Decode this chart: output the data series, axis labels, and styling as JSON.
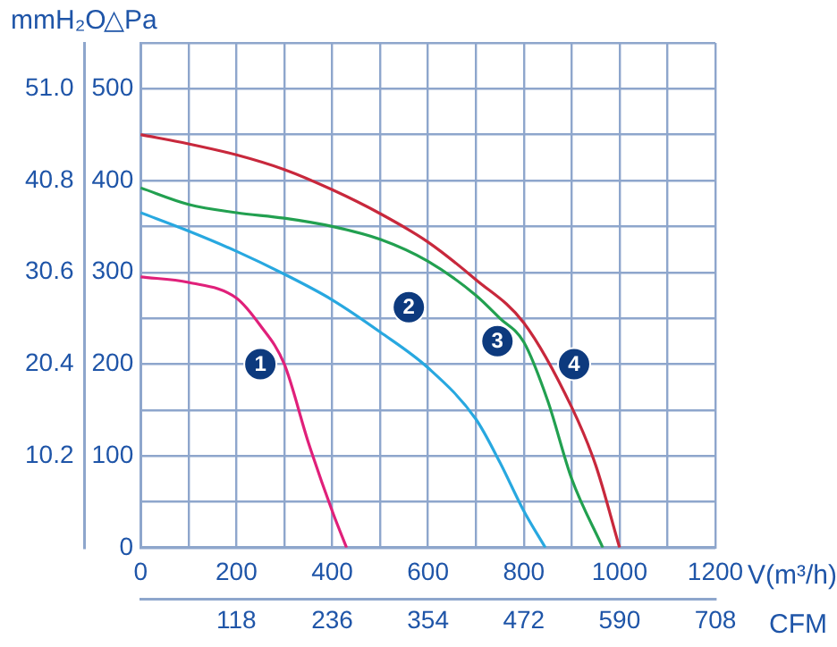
{
  "chart_data": {
    "type": "line",
    "xlabel": "V(m³/h)",
    "x2label": "CFM",
    "ylabel": "△Pa",
    "y2label": "mmH₂O",
    "marker": "none",
    "grid": true,
    "xlim": [
      0,
      1200
    ],
    "xticks": [
      0,
      {
        "value": 100,
        "label": null
      },
      200,
      {
        "value": 300,
        "label": null
      },
      400,
      {
        "value": 500,
        "label": null
      },
      600,
      {
        "value": 700,
        "label": null
      },
      800,
      {
        "value": 900,
        "label": null
      },
      1000,
      {
        "value": 1100,
        "label": null
      },
      1200
    ],
    "x2lim": [
      0,
      708
    ],
    "x2ticks": [
      118,
      236,
      354,
      472,
      590,
      708
    ],
    "ylim": [
      0,
      550
    ],
    "yticks": [
      0,
      {
        "value": 50,
        "label": null
      },
      100,
      {
        "value": 150,
        "label": null
      },
      200,
      {
        "value": 250,
        "label": null
      },
      300,
      {
        "value": 350,
        "label": null
      },
      400,
      {
        "value": 450,
        "label": null
      },
      500,
      {
        "value": 550,
        "label": null
      }
    ],
    "y2lim": [
      0,
      56.1
    ],
    "y2ticks": [
      10.2,
      20.4,
      30.6,
      40.8,
      {
        "value": 51,
        "label": "51.0"
      }
    ],
    "series": [
      {
        "color": "#e0207a",
        "x": [
          0,
          100,
          200,
          250,
          300,
          350,
          400,
          430
        ],
        "values": [
          295,
          289,
          272,
          242,
          200,
          115,
          40,
          0
        ]
      },
      {
        "color": "#28a8e0",
        "x": [
          0,
          100,
          200,
          300,
          400,
          500,
          600,
          700,
          750,
          800,
          845
        ],
        "values": [
          365,
          345,
          323,
          298,
          270,
          235,
          196,
          140,
          93,
          40,
          0
        ]
      },
      {
        "color": "#22a050",
        "x": [
          0,
          100,
          200,
          300,
          400,
          500,
          600,
          700,
          750,
          800,
          850,
          900,
          965
        ],
        "values": [
          392,
          374,
          365,
          359,
          350,
          336,
          312,
          275,
          250,
          224,
          160,
          75,
          0
        ]
      },
      {
        "color": "#c8283c",
        "x": [
          0,
          100,
          200,
          300,
          400,
          500,
          600,
          700,
          800,
          900,
          950,
          1000
        ],
        "values": [
          450,
          440,
          428,
          412,
          390,
          364,
          333,
          292,
          245,
          153,
          90,
          0
        ]
      }
    ],
    "annotations": [
      {
        "text": "1",
        "x": 250,
        "y": 200
      },
      {
        "text": "2",
        "x": 560,
        "y": 262
      },
      {
        "text": "3",
        "x": 745,
        "y": 225
      },
      {
        "text": "4",
        "x": 905,
        "y": 200
      }
    ]
  }
}
